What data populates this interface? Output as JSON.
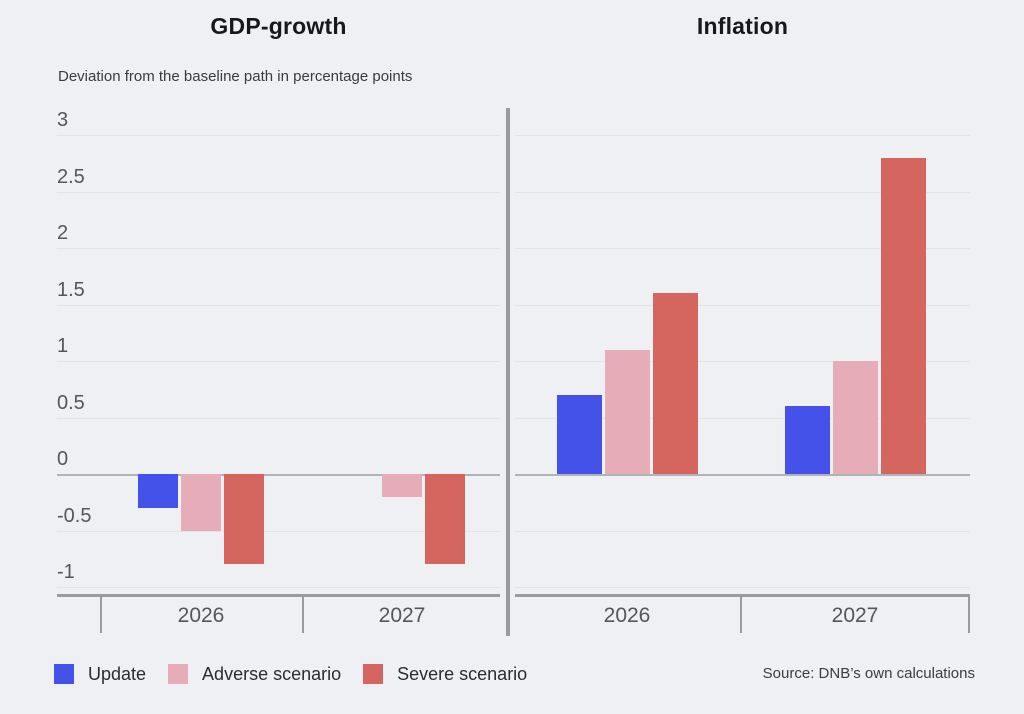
{
  "subtitle": "Deviation from the baseline path in percentage points",
  "source": "Source: DNB’s own calculations",
  "legend": {
    "position": "bottom",
    "items": [
      {
        "label": "Update",
        "color": "#4452e9"
      },
      {
        "label": "Adverse scenario",
        "color": "#e6adb9"
      },
      {
        "label": "Severe scenario",
        "color": "#d5665f"
      }
    ]
  },
  "colors": {
    "background": "#eff0f4",
    "grid": "#e2e4e9",
    "zero_line": "#b2b3b6",
    "axis": "#9b9b9d",
    "tick_label": "#55565a",
    "title": "#17181b"
  },
  "chart_data": [
    {
      "type": "bar",
      "title": "GDP-growth",
      "categories": [
        "2026",
        "2027"
      ],
      "series": [
        {
          "name": "Update",
          "color": "#4452e9",
          "values": [
            -0.3,
            0
          ]
        },
        {
          "name": "Adverse scenario",
          "color": "#e6adb9",
          "values": [
            -0.5,
            -0.2
          ]
        },
        {
          "name": "Severe scenario",
          "color": "#d5665f",
          "values": [
            -0.8,
            -0.8
          ]
        }
      ],
      "ylim": [
        -1,
        3
      ],
      "yticks": [
        3,
        2.5,
        2,
        1.5,
        1,
        0.5,
        0,
        -0.5,
        -1
      ],
      "grid": true,
      "show_y_labels": true
    },
    {
      "type": "bar",
      "title": "Inflation",
      "categories": [
        "2026",
        "2027"
      ],
      "series": [
        {
          "name": "Update",
          "color": "#4452e9",
          "values": [
            0.7,
            0.6
          ]
        },
        {
          "name": "Adverse scenario",
          "color": "#e6adb9",
          "values": [
            1.1,
            1.0
          ]
        },
        {
          "name": "Severe scenario",
          "color": "#d5665f",
          "values": [
            1.6,
            2.8
          ]
        }
      ],
      "ylim": [
        -1,
        3
      ],
      "yticks": [
        3,
        2.5,
        2,
        1.5,
        1,
        0.5,
        0,
        -0.5,
        -1
      ],
      "grid": true,
      "show_y_labels": false
    }
  ]
}
